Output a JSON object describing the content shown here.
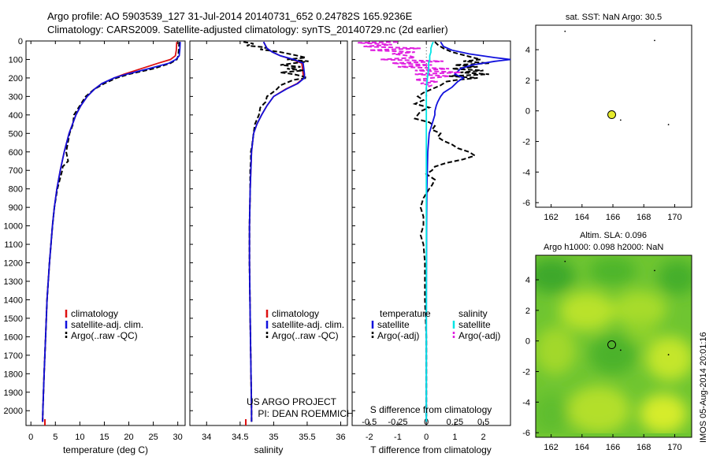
{
  "header": {
    "line1": "Argo profile: AO 5903539_127 31-Jul-2014 20140731_652 0.24782S 165.9236E",
    "line2": "Climatology: CARS2009. Satellite-adjusted climatology: synTS_20140729.nc (2d earlier)"
  },
  "colors": {
    "clim": "#dd1111",
    "sat": "#1111dd",
    "argo": "#000000",
    "sat_s": "#00e5e5",
    "argo_s": "#e020e0",
    "map_bg": "#7fcf2a"
  },
  "chart_data": [
    {
      "type": "line",
      "id": "temperature",
      "xlabel": "temperature (deg C)",
      "xlim": [
        -1,
        31.5
      ],
      "ylim": [
        0,
        2080
      ],
      "xticks": [
        "0",
        "5",
        "10",
        "15",
        "20",
        "25",
        "30"
      ],
      "yticks": [
        "0",
        "100",
        "200",
        "300",
        "400",
        "500",
        "600",
        "700",
        "800",
        "900",
        "1000",
        "1100",
        "1200",
        "1300",
        "1400",
        "1500",
        "1600",
        "1700",
        "1800",
        "1900",
        "2000"
      ],
      "legend": [
        "climatology",
        "satellite-adj. clim.",
        "Argo(..raw -QC)"
      ],
      "series": [
        {
          "name": "climatology",
          "depth": [
            5,
            50,
            80,
            100,
            120,
            150,
            180,
            200,
            230,
            260,
            300,
            350,
            400,
            500,
            600,
            700,
            800,
            900,
            1000,
            1200,
            1400,
            1600,
            1800,
            2000,
            2060
          ],
          "values": [
            29.8,
            29.7,
            29.5,
            28.5,
            26,
            22.5,
            19,
            17,
            14.5,
            13,
            11.5,
            10.2,
            9.2,
            7.8,
            6.8,
            6.0,
            5.3,
            4.8,
            4.4,
            3.8,
            3.3,
            3.0,
            2.7,
            2.45,
            2.4
          ]
        },
        {
          "name": "satellite-adj. clim.",
          "depth": [
            5,
            50,
            80,
            100,
            120,
            150,
            180,
            200,
            230,
            260,
            300,
            350,
            400,
            500,
            600,
            700,
            800,
            900,
            1000,
            1200,
            1400,
            1600,
            1800,
            2000,
            2060
          ],
          "values": [
            30.5,
            30.4,
            30.3,
            29.6,
            28.2,
            24,
            19.5,
            17,
            14.5,
            13,
            11.5,
            10.2,
            9.2,
            7.8,
            6.8,
            6.0,
            5.3,
            4.8,
            4.4,
            3.8,
            3.3,
            3.0,
            2.7,
            2.45,
            2.4
          ]
        },
        {
          "name": "Argo(..raw -QC)",
          "depth": [
            5,
            50,
            80,
            100,
            120,
            150,
            180,
            200,
            230,
            260,
            300,
            350,
            400,
            450,
            500,
            600,
            650,
            680,
            700,
            800,
            900,
            1000,
            1200,
            1400,
            1600,
            1800,
            2000,
            2060
          ],
          "values": [
            30.3,
            30.2,
            30.1,
            29.8,
            28.5,
            25,
            20,
            17.5,
            15,
            13,
            11.2,
            10,
            8.8,
            8.6,
            7.9,
            7.2,
            7.6,
            6.5,
            6.4,
            5.4,
            4.8,
            4.4,
            3.8,
            3.3,
            3.0,
            2.7,
            2.45,
            2.4
          ]
        }
      ]
    },
    {
      "type": "line",
      "id": "salinity",
      "xlabel": "salinity",
      "xlim": [
        33.75,
        36.1
      ],
      "ylim": [
        0,
        2080
      ],
      "xticks": [
        "34",
        "34.5",
        "35",
        "35.5",
        "36"
      ],
      "legend": [
        "climatology",
        "satellite-adj. clim.",
        "Argo(..raw -QC)"
      ],
      "annotation": [
        "US ARGO PROJECT",
        "PI: DEAN ROEMMICH"
      ],
      "series": [
        {
          "name": "climatology",
          "depth": [
            5,
            40,
            60,
            80,
            100,
            120,
            150,
            180,
            200,
            230,
            260,
            300,
            350,
            400,
            450,
            500,
            600,
            800,
            1000,
            1200,
            1500,
            2000,
            2060
          ],
          "values": [
            34.85,
            34.9,
            34.98,
            35.1,
            35.28,
            35.42,
            35.43,
            35.44,
            35.45,
            35.35,
            35.18,
            35.0,
            34.9,
            34.82,
            34.75,
            34.7,
            34.67,
            34.65,
            34.64,
            34.64,
            34.65,
            34.67,
            34.67
          ]
        },
        {
          "name": "satellite-adj. clim.",
          "depth": [
            5,
            40,
            60,
            80,
            100,
            120,
            150,
            180,
            200,
            230,
            260,
            300,
            350,
            400,
            450,
            500,
            600,
            800,
            1000,
            1200,
            1500,
            2000,
            2060
          ],
          "values": [
            34.85,
            34.9,
            34.98,
            35.1,
            35.3,
            35.44,
            35.45,
            35.46,
            35.46,
            35.36,
            35.19,
            35.0,
            34.9,
            34.82,
            34.75,
            34.7,
            34.67,
            34.65,
            34.64,
            34.64,
            34.65,
            34.67,
            34.67
          ]
        },
        {
          "name": "Argo(..raw -QC)",
          "depth": [
            5,
            15,
            25,
            35,
            45,
            60,
            75,
            90,
            100,
            110,
            120,
            130,
            140,
            150,
            160,
            170,
            180,
            190,
            200,
            210,
            225,
            240,
            260,
            280,
            300,
            330,
            360,
            400,
            450,
            500,
            560,
            600,
            650,
            700,
            800,
            1000,
            1200,
            1500,
            2000,
            2060
          ],
          "values": [
            34.55,
            34.7,
            34.6,
            34.9,
            34.8,
            35.1,
            35.3,
            35.48,
            35.2,
            35.52,
            35.3,
            35.1,
            35.4,
            35.2,
            35.45,
            35.1,
            35.3,
            35.42,
            35.5,
            35.3,
            35.2,
            35.1,
            35.05,
            34.98,
            34.9,
            34.88,
            34.8,
            34.78,
            34.72,
            34.7,
            34.68,
            34.66,
            34.66,
            34.65,
            34.65,
            34.64,
            34.64,
            34.65,
            34.67,
            34.67
          ]
        }
      ]
    },
    {
      "type": "line",
      "id": "difference",
      "xlabel": "T difference from climatology",
      "xlabel_top": "S difference from climatology",
      "xlim": [
        -2.6,
        2.95
      ],
      "ylim": [
        0,
        2080
      ],
      "xticks": [
        "-2",
        "-1",
        "0",
        "1",
        "2"
      ],
      "xticks_top": [
        "-0.5",
        "-0.25",
        "0",
        "0.25",
        "0.5"
      ],
      "legend_left_title": "temperature",
      "legend_right_title": "salinity",
      "legend_left": [
        "satellite",
        "Argo(-adj)"
      ],
      "legend_right": [
        "satellite",
        "Argo(-adj)"
      ],
      "series": [
        {
          "name": "temperature satellite",
          "depth": [
            5,
            30,
            50,
            70,
            90,
            100,
            110,
            130,
            150,
            180,
            200,
            220,
            250,
            280,
            300,
            330,
            350,
            380,
            400,
            450,
            500,
            600,
            800,
            1000,
            1500,
            2000,
            2060
          ],
          "values": [
            0.5,
            0.6,
            0.9,
            1.5,
            2.4,
            2.95,
            2.4,
            1.6,
            1.2,
            1.0,
            1.3,
            1.1,
            0.9,
            0.6,
            0.5,
            0.4,
            0.35,
            0.3,
            0.3,
            0.2,
            0.1,
            0.05,
            0.02,
            0.01,
            0,
            0,
            0
          ]
        },
        {
          "name": "temperature Argo(-adj)",
          "depth": [
            5,
            20,
            40,
            60,
            80,
            100,
            110,
            120,
            130,
            140,
            150,
            160,
            170,
            180,
            190,
            200,
            210,
            220,
            240,
            260,
            280,
            300,
            320,
            340,
            360,
            380,
            400,
            420,
            440,
            460,
            480,
            500,
            520,
            540,
            560,
            580,
            600,
            620,
            640,
            660,
            680,
            700,
            720,
            750,
            780,
            800,
            850,
            900,
            950,
            1000,
            1050,
            1100,
            1200,
            1400,
            1600,
            1800,
            2000,
            2060
          ],
          "values": [
            0.3,
            0.4,
            0.6,
            0.9,
            1.4,
            1.9,
            1.3,
            2.2,
            1.0,
            1.8,
            0.9,
            2.0,
            1.2,
            2.2,
            0.8,
            1.8,
            1.1,
            0.7,
            0.5,
            0.2,
            -0.1,
            -0.3,
            -0.1,
            -0.4,
            0.1,
            -0.2,
            -0.3,
            -0.4,
            0.1,
            0.3,
            0.2,
            0.5,
            0.4,
            0.6,
            0.9,
            1.1,
            1.5,
            1.7,
            1.3,
            0.7,
            0.3,
            0.2,
            0.0,
            0.3,
            0.2,
            0.1,
            -0.1,
            -0.2,
            -0.1,
            -0.1,
            -0.2,
            -0.1,
            -0.05,
            -0.05,
            0,
            0,
            0,
            0
          ]
        },
        {
          "name": "salinity satellite",
          "depth": [
            5,
            20,
            40,
            60,
            80,
            100,
            120,
            150,
            200,
            250,
            300,
            350,
            400,
            500,
            600,
            800,
            1000,
            1500,
            2000,
            2060
          ],
          "values": [
            0.06,
            0.05,
            0.04,
            0.04,
            0.03,
            0.03,
            0.02,
            0.02,
            0.01,
            0.0,
            0.0,
            0.0,
            0.0,
            0,
            0,
            0,
            0,
            0,
            0,
            0
          ]
        },
        {
          "name": "salinity Argo(-adj)",
          "depth": [
            5,
            10,
            20,
            30,
            40,
            50,
            60,
            70,
            80,
            90,
            100,
            110,
            120,
            130,
            140,
            150,
            160,
            170,
            180,
            190,
            200,
            210,
            220,
            230,
            240,
            250,
            260,
            270,
            280,
            290,
            300
          ],
          "values": [
            -0.25,
            -0.6,
            -0.3,
            -0.55,
            -0.05,
            -0.5,
            -0.1,
            -0.3,
            -0.15,
            -0.1,
            -0.4,
            0.15,
            -0.3,
            0.05,
            -0.25,
            0.2,
            -0.1,
            0.3,
            -0.1,
            0.2,
            0.05,
            -0.1,
            0.1,
            -0.05,
            0.05,
            0.0,
            0.0,
            0.0,
            0.0,
            0.0,
            0.0
          ]
        }
      ]
    },
    {
      "type": "scatter",
      "id": "sst-map",
      "title": "sat. SST: NaN Argo: 30.5",
      "xlim": [
        161,
        171.1
      ],
      "ylim": [
        -6.3,
        5.6
      ],
      "xticks": [
        "162",
        "164",
        "166",
        "168",
        "170"
      ],
      "yticks": [
        "4",
        "2",
        "0",
        "-2",
        "-4",
        "-6"
      ],
      "float_position": [
        165.9236,
        -0.24782
      ]
    },
    {
      "type": "heatmap",
      "id": "sla-map",
      "title": "Altim. SLA: 0.096",
      "subtitle": "Argo h1000: 0.098 h2000: NaN",
      "xlim": [
        161,
        171.1
      ],
      "ylim": [
        -6.3,
        5.6
      ],
      "xticks": [
        "162",
        "164",
        "166",
        "168",
        "170"
      ],
      "yticks": [
        "4",
        "2",
        "0",
        "-2",
        "-4",
        "-6"
      ],
      "float_position": [
        165.9236,
        -0.24782
      ]
    }
  ],
  "footer": {
    "stamp": "IMOS 05-Aug-2014 20:01:16"
  }
}
